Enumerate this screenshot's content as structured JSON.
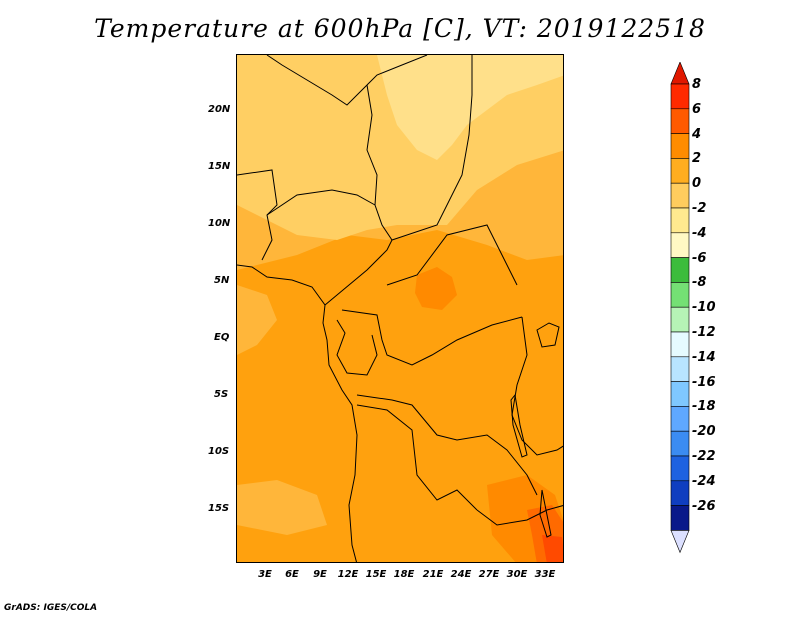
{
  "title": "Temperature at 600hPa [C], VT: 2019122518",
  "credit": "GrADS: IGES/COLA",
  "lat_labels": [
    "20N",
    "15N",
    "10N",
    "5N",
    "EQ",
    "5S",
    "10S",
    "15S"
  ],
  "lon_labels": [
    "3E",
    "6E",
    "9E",
    "12E",
    "15E",
    "18E",
    "21E",
    "24E",
    "27E",
    "30E",
    "33E"
  ],
  "colorbar": {
    "levels": [
      "8",
      "6",
      "4",
      "2",
      "0",
      "-2",
      "-4",
      "-6",
      "-8",
      "-10",
      "-12",
      "-14",
      "-16",
      "-18",
      "-20",
      "-22",
      "-24",
      "-26"
    ],
    "colors": [
      "#ff2a00",
      "#ff5a00",
      "#ff8c00",
      "#ffad1f",
      "#ffcc5e",
      "#ffe98f",
      "#fff8c4",
      "#3cbc3c",
      "#74e074",
      "#b6f4b6",
      "#e6fbff",
      "#b8e4ff",
      "#7fc8ff",
      "#5fa8ff",
      "#3b8cf2",
      "#1e62e0",
      "#0f3ec0",
      "#09198a"
    ],
    "max_triangle_color": "#e01800",
    "min_triangle_color": "#dce0ff"
  },
  "field_colors": {
    "desert": "#ffe08a",
    "sahel": "#ffcf63",
    "warm": "#ffb63a",
    "main": "#ffa10e",
    "hot": "#ff8a00",
    "hotter": "#ff6a00",
    "hottest": "#ff4a00"
  }
}
